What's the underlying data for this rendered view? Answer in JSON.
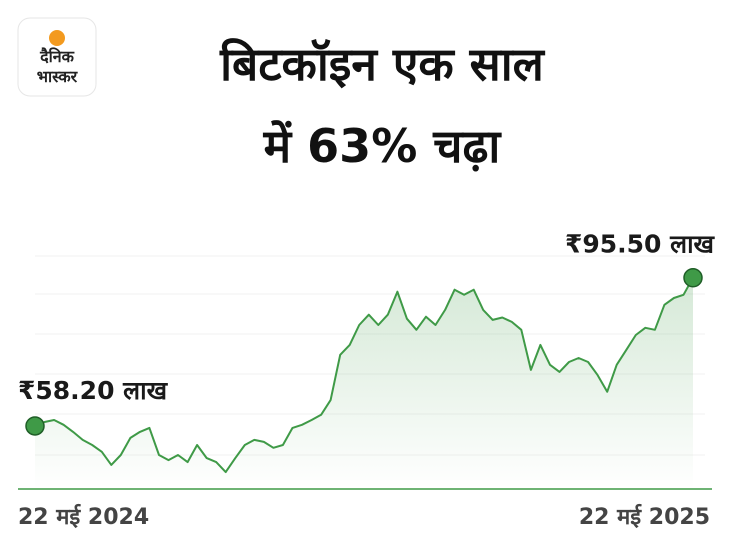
{
  "logo": {
    "line1": "दैनिक",
    "line2": "भास्कर"
  },
  "chart_data": {
    "type": "line",
    "title": [
      "बिटकॉइन एक साल",
      "में 63% चढ़ा"
    ],
    "categories": [
      "22 मई 2024",
      null,
      null,
      null,
      null,
      null,
      null,
      null,
      null,
      null,
      null,
      null,
      null,
      null,
      null,
      null,
      null,
      null,
      null,
      null,
      null,
      null,
      null,
      null,
      null,
      null,
      null,
      null,
      null,
      null,
      null,
      null,
      null,
      null,
      null,
      null,
      null,
      null,
      null,
      null,
      null,
      null,
      null,
      null,
      null,
      null,
      null,
      null,
      null,
      null,
      null,
      null,
      null,
      null,
      null,
      null,
      null,
      null,
      null,
      null,
      null,
      null,
      null,
      null,
      null,
      null,
      null,
      null,
      null,
      "22 मई 2025"
    ],
    "series": [
      {
        "color": "#3f9a47",
        "values": [
          58.2,
          59.2,
          59.7,
          58.5,
          56.7,
          54.7,
          53.4,
          51.7,
          48.4,
          50.9,
          55.2,
          56.7,
          57.7,
          50.9,
          49.6,
          50.9,
          49.1,
          53.4,
          50.1,
          49.1,
          46.6,
          50.1,
          53.4,
          54.7,
          54.2,
          52.7,
          53.4,
          57.7,
          58.5,
          59.7,
          61.0,
          64.7,
          76.1,
          78.6,
          83.6,
          86.2,
          83.6,
          86.2,
          92.0,
          85.2,
          82.4,
          85.7,
          83.6,
          87.4,
          92.5,
          91.2,
          92.5,
          87.4,
          84.9,
          85.5,
          84.4,
          82.4,
          72.3,
          78.6,
          73.6,
          71.8,
          74.3,
          75.3,
          74.3,
          71.0,
          66.8,
          73.6,
          77.3,
          81.1,
          82.9,
          82.4,
          88.7,
          90.4,
          91.2,
          95.5
        ],
        "value_labels": [
          "₹58.20 लाख",
          null,
          null,
          null,
          null,
          null,
          null,
          null,
          null,
          null,
          null,
          null,
          null,
          null,
          null,
          null,
          null,
          null,
          null,
          null,
          null,
          null,
          null,
          null,
          null,
          null,
          null,
          null,
          null,
          null,
          null,
          null,
          null,
          null,
          null,
          null,
          null,
          null,
          null,
          null,
          null,
          null,
          null,
          null,
          null,
          null,
          null,
          null,
          null,
          null,
          null,
          null,
          null,
          null,
          null,
          null,
          null,
          null,
          null,
          null,
          null,
          null,
          null,
          null,
          null,
          null,
          null,
          null,
          null,
          "₹95.50 लाख"
        ]
      }
    ],
    "ylim": [
      44.6,
      105
    ]
  }
}
